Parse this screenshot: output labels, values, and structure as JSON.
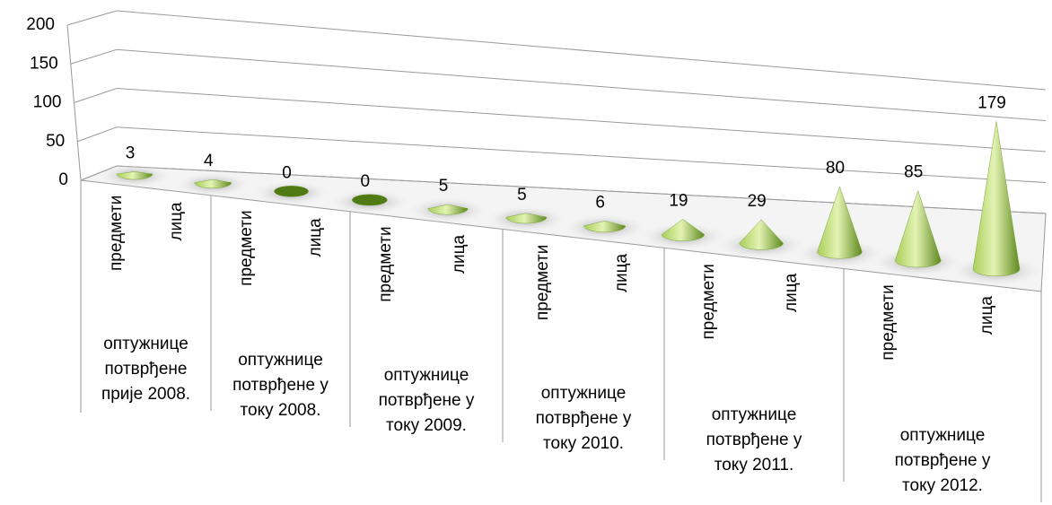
{
  "chart_data": {
    "type": "cone",
    "categories": [
      "предмети",
      "лица",
      "предмети",
      "лица",
      "предмети",
      "лица",
      "предмети",
      "лица",
      "предмети",
      "лица",
      "предмети",
      "лица"
    ],
    "groups": [
      "оптужнице потврђене прије 2008.",
      "оптужнице потврђене у току 2008.",
      "оптужнице потврђене у току 2009.",
      "оптужнице потврђене у току 2010.",
      "оптужнице потврђене у току 2011.",
      "оптужнице потврђене у току 2012."
    ],
    "values": [
      3,
      4,
      0,
      0,
      5,
      5,
      6,
      19,
      29,
      80,
      85,
      179
    ],
    "color": "#8fbf3f",
    "ylim": [
      0,
      200
    ],
    "yticks": [
      0,
      50,
      100,
      150,
      200
    ],
    "grid": true
  }
}
